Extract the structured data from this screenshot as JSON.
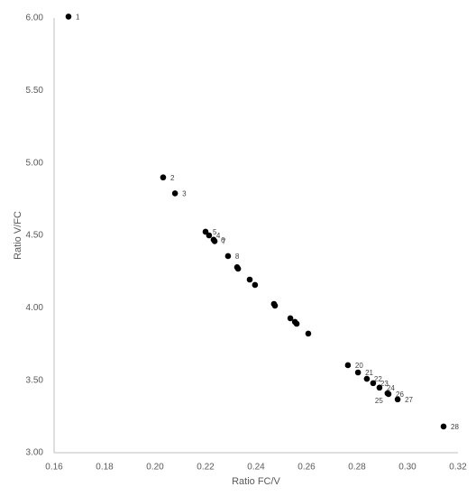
{
  "chart_data": {
    "type": "scatter",
    "x_label": "Ratio FC/V",
    "y_label": "Ratio V/FC",
    "x": [
      0.1657,
      0.2032,
      0.2079,
      0.22,
      0.2214,
      0.2232,
      0.2236,
      0.2289,
      0.2325,
      0.2329,
      0.2375,
      0.2396,
      0.2471,
      0.2475,
      0.2536,
      0.2554,
      0.2561,
      0.2607,
      0.2764,
      0.2804,
      0.2839,
      0.2864,
      0.2889,
      0.2921,
      0.2925,
      0.2961,
      0.3143
    ],
    "values": [
      6.01,
      4.9,
      4.79,
      4.525,
      4.5,
      4.47,
      4.46,
      4.357,
      4.28,
      4.27,
      4.195,
      4.158,
      4.027,
      4.015,
      3.928,
      3.903,
      3.89,
      3.822,
      3.604,
      3.554,
      3.51,
      3.48,
      3.449,
      3.41,
      3.405,
      3.368,
      3.181
    ],
    "point_labels": [
      1,
      2,
      3,
      5,
      4,
      6,
      7,
      8,
      null,
      null,
      null,
      null,
      null,
      null,
      null,
      null,
      null,
      null,
      20,
      21,
      22,
      23,
      24,
      25,
      26,
      27,
      28
    ],
    "color": "#000000",
    "xlim": [
      0.16,
      0.32
    ],
    "xticks": [
      0.16,
      0.18,
      {
        "value": 0.2,
        "label": "0.20"
      },
      0.22,
      0.24,
      0.26,
      0.28,
      {
        "value": 0.3,
        "label": "0.30"
      },
      0.32
    ],
    "ylim": [
      3,
      6
    ],
    "yticks": [
      {
        "value": 3,
        "label": "3.00"
      },
      {
        "value": 3.5,
        "label": "3.50"
      },
      {
        "value": 4,
        "label": "4.00"
      },
      {
        "value": 4.5,
        "label": "4.50"
      },
      {
        "value": 5,
        "label": "5.00"
      },
      {
        "value": 5.5,
        "label": "5.50"
      },
      {
        "value": 6,
        "label": "6.00"
      }
    ],
    "grid": false
  }
}
